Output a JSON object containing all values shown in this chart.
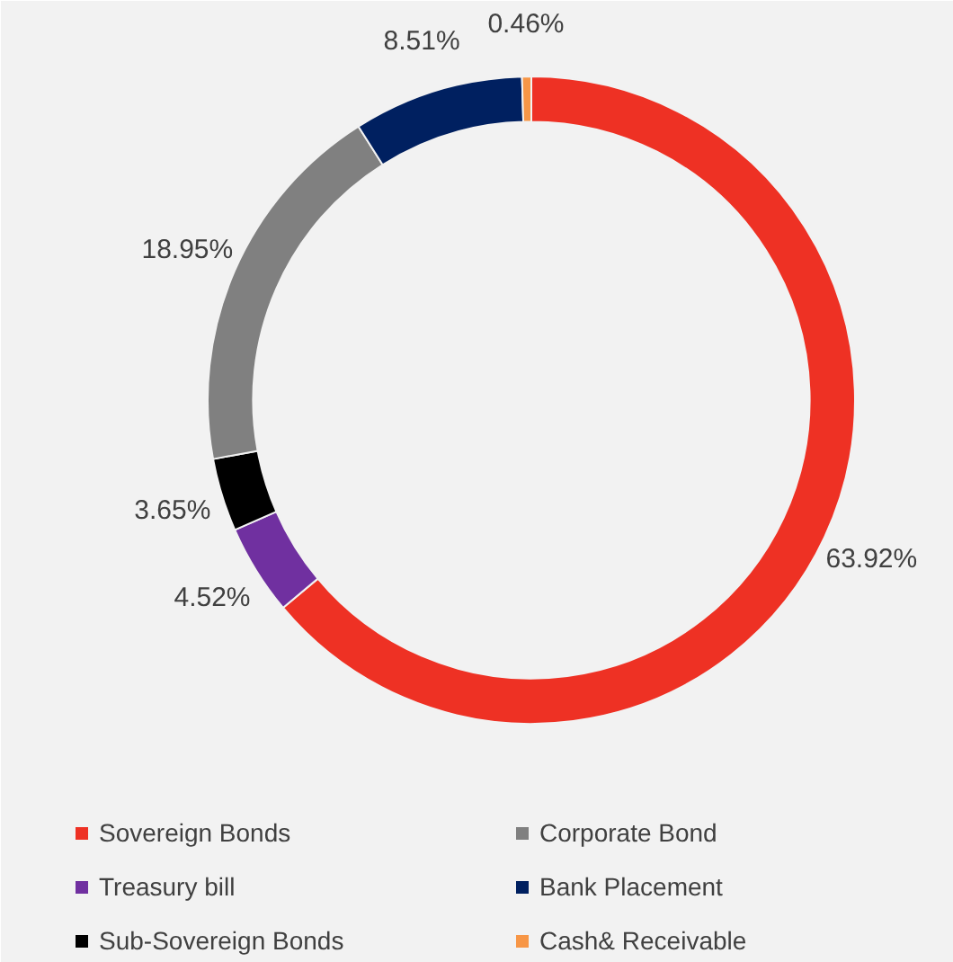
{
  "chart_data": {
    "type": "donut",
    "categories": [
      "Sovereign Bonds",
      "Treasury bill",
      "Sub-Sovereign Bonds",
      "Corporate Bond",
      "Bank Placement",
      "Cash& Receivable"
    ],
    "values": [
      63.92,
      4.52,
      3.65,
      18.95,
      8.51,
      0.46
    ],
    "colors": [
      "#ee3124",
      "#7030a0",
      "#000000",
      "#808080",
      "#002060",
      "#f79646"
    ],
    "value_labels": [
      "63.92%",
      "4.52%",
      "3.65%",
      "18.95%",
      "8.51%",
      "0.46%"
    ],
    "legend": "bottom"
  }
}
